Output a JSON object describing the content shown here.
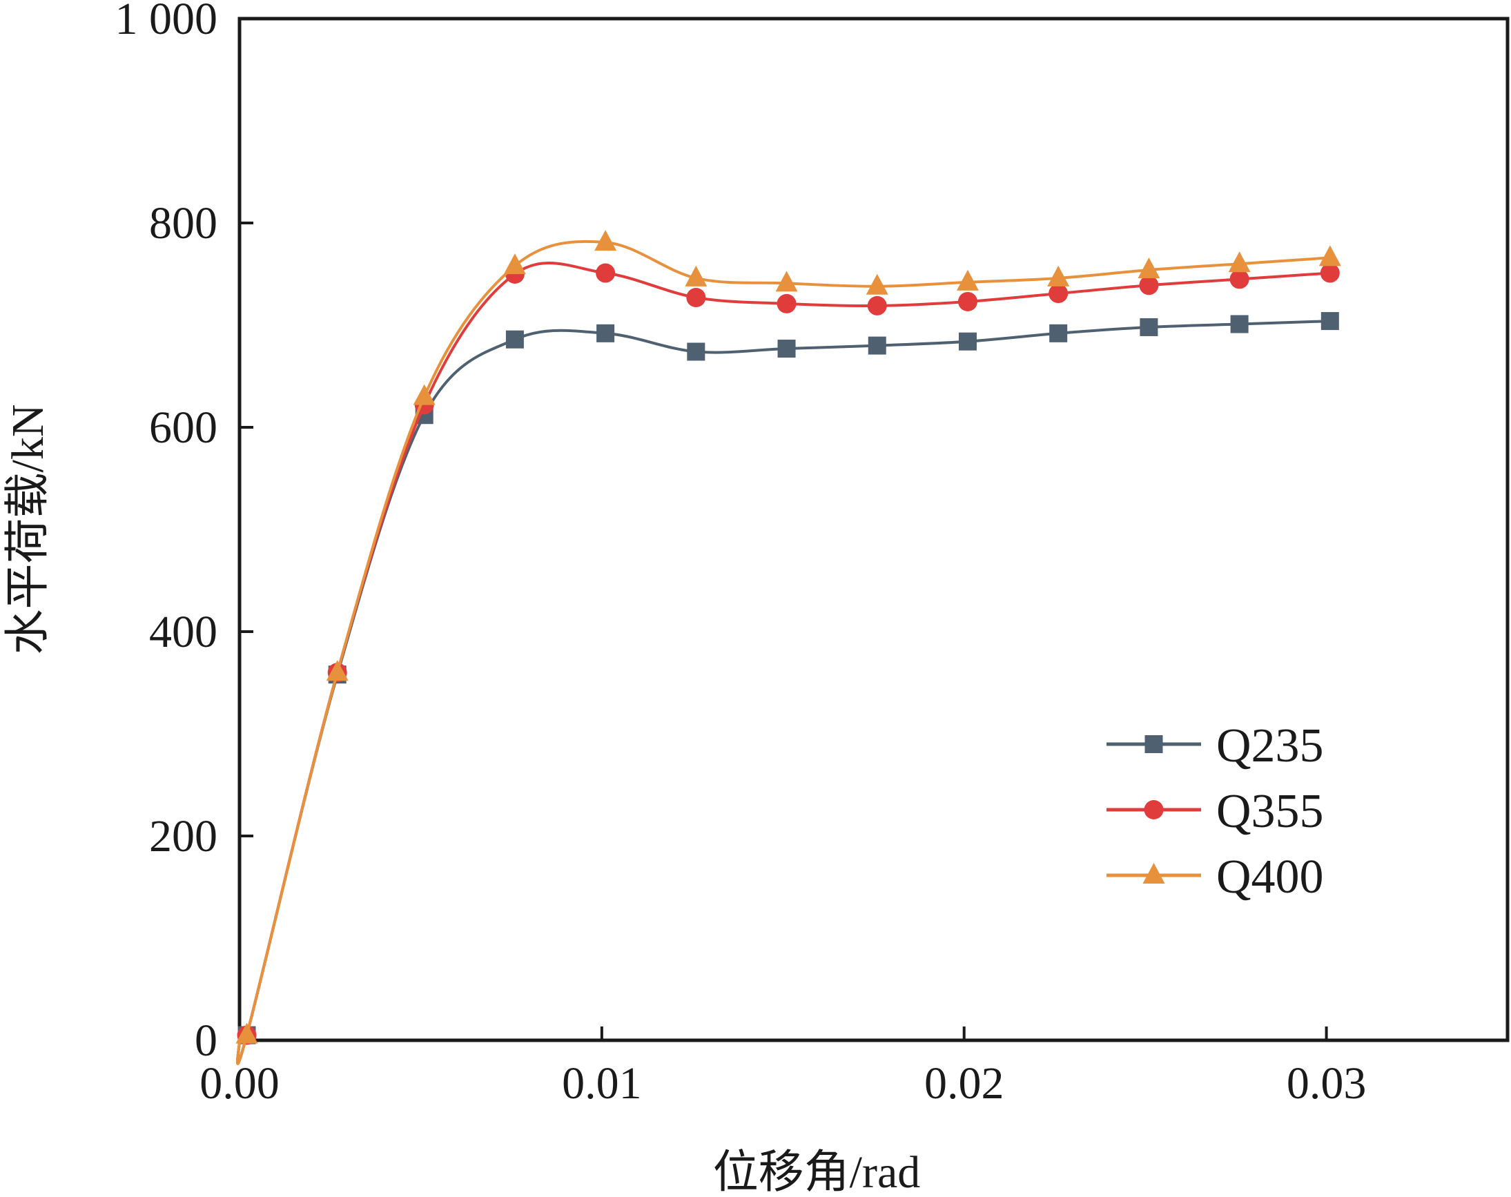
{
  "chart_data": {
    "type": "line",
    "title": "",
    "xlabel": "位移角/rad",
    "ylabel": "水平荷载/kN",
    "xlim": [
      0,
      0.035
    ],
    "ylim": [
      0,
      1000
    ],
    "grid": false,
    "legend_position": "lower-right",
    "x_ticks": [
      {
        "value": 0,
        "label": "0.00"
      },
      {
        "value": 0.01,
        "label": "0.01"
      },
      {
        "value": 0.02,
        "label": "0.02"
      },
      {
        "value": 0.03,
        "label": "0.03"
      }
    ],
    "y_ticks": [
      {
        "value": 0,
        "label": "0"
      },
      {
        "value": 200,
        "label": "200"
      },
      {
        "value": 400,
        "label": "400"
      },
      {
        "value": 600,
        "label": "600"
      },
      {
        "value": 800,
        "label": "800"
      },
      {
        "value": 1000,
        "label": "1 000"
      }
    ],
    "x": [
      0.0002,
      0.0027,
      0.0051,
      0.0076,
      0.0101,
      0.0126,
      0.0151,
      0.0176,
      0.0201,
      0.0226,
      0.0251,
      0.0276,
      0.0301
    ],
    "series": [
      {
        "name": "Q235",
        "marker": "square",
        "color": "#4f6070",
        "values": [
          5,
          358,
          612,
          686,
          692,
          674,
          677,
          680,
          684,
          692,
          698,
          701,
          704
        ]
      },
      {
        "name": "Q355",
        "marker": "circle",
        "color": "#e03c3c",
        "values": [
          5,
          360,
          622,
          750,
          751,
          727,
          721,
          719,
          723,
          731,
          739,
          745,
          751
        ]
      },
      {
        "name": "Q400",
        "marker": "triangle",
        "color": "#e8913c",
        "values": [
          5,
          360,
          630,
          758,
          781,
          746,
          741,
          738,
          742,
          746,
          754,
          760,
          766
        ]
      }
    ]
  }
}
